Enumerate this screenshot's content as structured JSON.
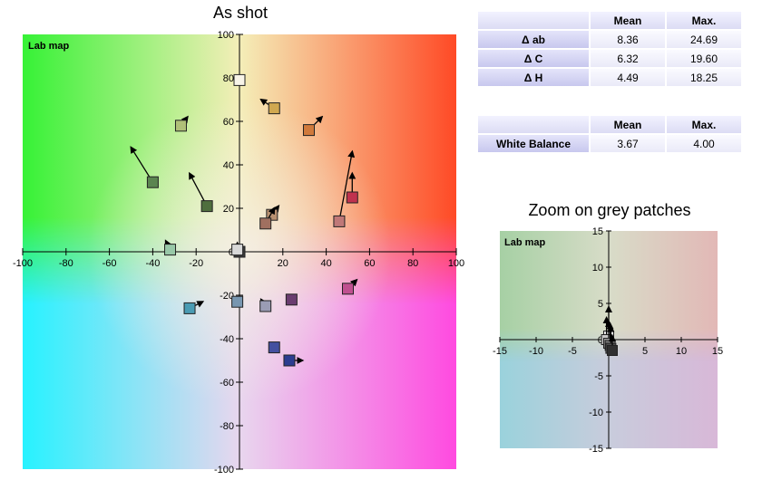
{
  "main_title": "As shot",
  "zoom_title": "Zoom on grey patches",
  "stats_table": {
    "columns": [
      "",
      "Mean",
      "Max."
    ],
    "rows": [
      {
        "label": "Δ ab",
        "mean": "8.36",
        "max": "24.69"
      },
      {
        "label": "Δ C",
        "mean": "6.32",
        "max": "19.60"
      },
      {
        "label": "Δ H",
        "mean": "4.49",
        "max": "18.25"
      }
    ]
  },
  "wb_table": {
    "columns": [
      "",
      "Mean",
      "Max."
    ],
    "rows": [
      {
        "label": "White Balance",
        "mean": "3.67",
        "max": "4.00"
      }
    ]
  },
  "chart_data": [
    {
      "type": "scatter",
      "plot_label": "Lab map",
      "xlim": [
        -100,
        100
      ],
      "ylim": [
        -100,
        100
      ],
      "x_ticks": [
        -100,
        -80,
        -60,
        -40,
        -20,
        0,
        20,
        40,
        60,
        80,
        100
      ],
      "y_ticks": [
        -100,
        -80,
        -60,
        -40,
        -20,
        0,
        20,
        40,
        60,
        80,
        100
      ],
      "patches": [
        {
          "a": 0,
          "b": 79,
          "color": "#f8f4e8",
          "dx": 0,
          "dy": 0
        },
        {
          "a": 16,
          "b": 66,
          "color": "#d0a850",
          "dx": -6,
          "dy": 4
        },
        {
          "a": -27,
          "b": 58,
          "color": "#b0c078",
          "dx": 3,
          "dy": 4
        },
        {
          "a": 32,
          "b": 56,
          "color": "#d07a3c",
          "dx": 6,
          "dy": 6
        },
        {
          "a": -40,
          "b": 32,
          "color": "#5b8550",
          "dx": -10,
          "dy": 16
        },
        {
          "a": -15,
          "b": 21,
          "color": "#4f6e3e",
          "dx": -8,
          "dy": 15
        },
        {
          "a": 52,
          "b": 25,
          "color": "#c0324e",
          "dx": 0,
          "dy": 11
        },
        {
          "a": 46,
          "b": 14,
          "color": "#c07878",
          "dx": 6,
          "dy": 32
        },
        {
          "a": 15,
          "b": 17,
          "color": "#b89070",
          "dx": 3,
          "dy": 4
        },
        {
          "a": 12,
          "b": 13,
          "color": "#a07060",
          "dx": 4,
          "dy": 7
        },
        {
          "a": -32,
          "b": 1,
          "color": "#98c8a8",
          "dx": -2,
          "dy": 4
        },
        {
          "a": 0,
          "b": 0,
          "color": "#3c3c3c",
          "dx": 0,
          "dy": 2
        },
        {
          "a": -1,
          "b": 1,
          "color": "#d8d8d8",
          "dx": 0,
          "dy": 3
        },
        {
          "a": 50,
          "b": -17,
          "color": "#c05090",
          "dx": 4,
          "dy": 4
        },
        {
          "a": -1,
          "b": -23,
          "color": "#7896b0",
          "dx": 0,
          "dy": 0
        },
        {
          "a": 12,
          "b": -25,
          "color": "#9a9cb4",
          "dx": -2,
          "dy": 3
        },
        {
          "a": 24,
          "b": -22,
          "color": "#6a3c70",
          "dx": 0,
          "dy": 0
        },
        {
          "a": -23,
          "b": -26,
          "color": "#4a9cb4",
          "dx": 6,
          "dy": 3
        },
        {
          "a": 16,
          "b": -44,
          "color": "#4450a0",
          "dx": 0,
          "dy": 0
        },
        {
          "a": 23,
          "b": -50,
          "color": "#2c3c90",
          "dx": 6,
          "dy": 0
        }
      ]
    },
    {
      "type": "scatter",
      "plot_label": "Lab map",
      "xlim": [
        -15,
        15
      ],
      "ylim": [
        -15,
        15
      ],
      "x_ticks": [
        -15,
        -10,
        -5,
        0,
        5,
        10,
        15
      ],
      "y_ticks": [
        -15,
        -10,
        -5,
        0,
        5,
        10,
        15
      ],
      "patches": [
        {
          "a": 0,
          "b": 0.5,
          "color": "#ececec",
          "dx": 0,
          "dy": 4
        },
        {
          "a": -0.3,
          "b": 0,
          "color": "#c8c8c8",
          "dx": 0,
          "dy": 3
        },
        {
          "a": 0,
          "b": -0.5,
          "color": "#a0a0a0",
          "dx": 0,
          "dy": 3
        },
        {
          "a": 0.2,
          "b": -0.8,
          "color": "#787878",
          "dx": 0,
          "dy": 3
        },
        {
          "a": 0.3,
          "b": -1.2,
          "color": "#505050",
          "dx": 0,
          "dy": 3
        },
        {
          "a": 0.5,
          "b": -1.5,
          "color": "#303030",
          "dx": 0,
          "dy": 2
        }
      ]
    }
  ]
}
